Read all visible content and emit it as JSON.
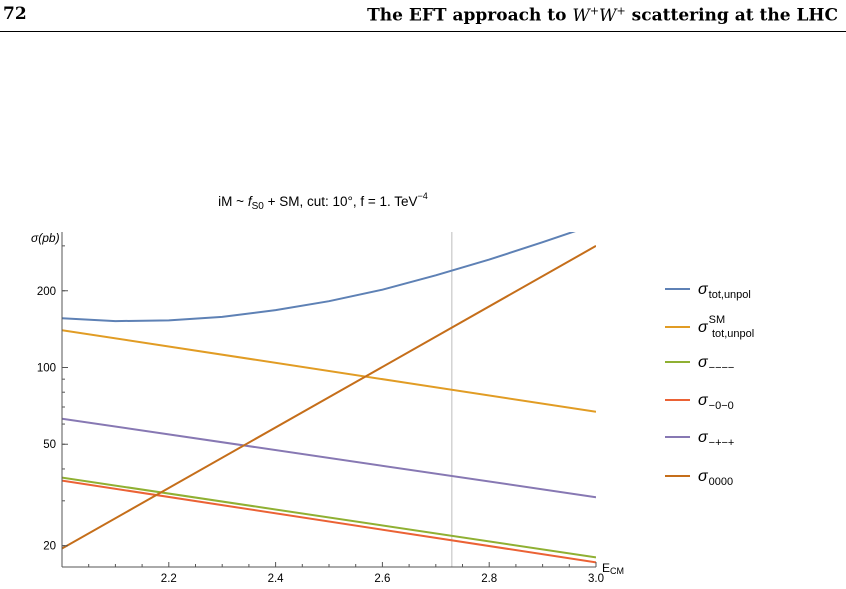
{
  "header": {
    "page_number": "72",
    "running_title_prefix": "The EFT approach to",
    "running_title_w": "W",
    "running_title_sup": "+",
    "running_title_suffix": "scattering at the LHC"
  },
  "chart_data": {
    "type": "line",
    "title": {
      "prefix": "iM ~ ",
      "f": "f",
      "f_sub": "S0",
      "middle": " + SM,  cut: 10°,  f = 1. TeV",
      "exp": "−4"
    },
    "ylabel": "σ(pb)",
    "xlabel": {
      "base": "E",
      "sub": "CM"
    },
    "y_scale": "log",
    "xlim": [
      2.0,
      3.0
    ],
    "ylim": [
      16.5,
      340
    ],
    "x_ticks": [
      2.2,
      2.4,
      2.6,
      2.8,
      3.0
    ],
    "x_tick_labels": [
      "2.2",
      "2.4",
      "2.6",
      "2.8",
      "3.0"
    ],
    "y_ticks": [
      20,
      50,
      100,
      200
    ],
    "y_tick_labels": [
      "20",
      "50",
      "100",
      "200"
    ],
    "vline_x": 2.73,
    "legend_position": "right",
    "series": [
      {
        "name": "σ",
        "sub": "tot,unpol",
        "sup": "",
        "color": "#5e81b5",
        "x": [
          2.0,
          2.1,
          2.2,
          2.3,
          2.4,
          2.5,
          2.6,
          2.7,
          2.8,
          2.9,
          3.0
        ],
        "y": [
          156,
          152,
          153,
          158,
          168,
          182,
          202,
          230,
          265,
          310,
          365
        ]
      },
      {
        "name": "σ",
        "sub": "tot,unpol",
        "sup": "SM",
        "color": "#e19c24",
        "x": [
          2.0,
          3.0
        ],
        "y": [
          140,
          67
        ]
      },
      {
        "name": "σ",
        "sub": "−−−−",
        "sup": "",
        "color": "#8fb032",
        "x": [
          2.0,
          3.0
        ],
        "y": [
          37,
          18
        ]
      },
      {
        "name": "σ",
        "sub": "−0−0",
        "sup": "",
        "color": "#eb6235",
        "x": [
          2.0,
          3.0
        ],
        "y": [
          36,
          17.2
        ]
      },
      {
        "name": "σ",
        "sub": "−+−+",
        "sup": "",
        "color": "#8778b3",
        "x": [
          2.0,
          3.0
        ],
        "y": [
          63,
          31
        ]
      },
      {
        "name": "σ",
        "sub": "0000",
        "sup": "",
        "color": "#c56e1a",
        "x": [
          2.0,
          3.0
        ],
        "y": [
          19.5,
          300
        ]
      }
    ]
  }
}
